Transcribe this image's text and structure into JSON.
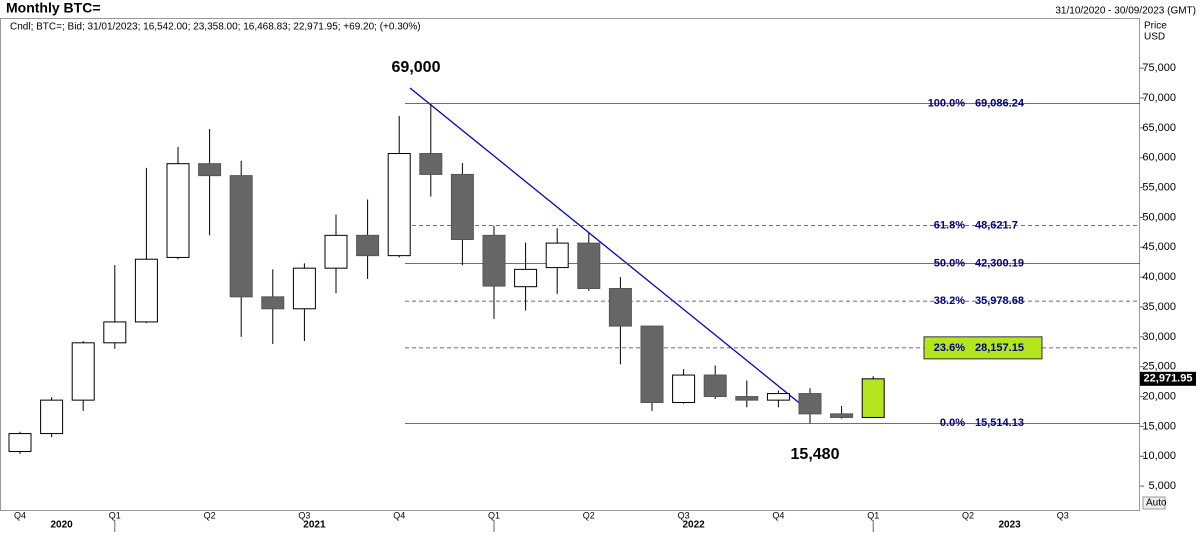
{
  "chart_data": {
    "type": "candlestick",
    "title": "Monthly BTC=",
    "subtitle": "Cndl; BTC=; Bid; 31/01/2023; 16,542.00; 23,358.00; 16,468.83; 22,971.95; +69.20; (+0.30%)",
    "date_range": "31/10/2020 - 30/09/2023 (GMT)",
    "y_axis_title": "Price",
    "y_axis_unit": "USD",
    "scale_mode": "Auto",
    "categories": [
      "Q4",
      null,
      null,
      "Q1",
      null,
      null,
      "Q2",
      null,
      null,
      "Q3",
      null,
      null,
      "Q4",
      null,
      null,
      "Q1",
      null,
      null,
      "Q2",
      null,
      null,
      "Q3",
      null,
      null,
      "Q4",
      null,
      null,
      "Q1",
      null,
      null,
      "Q2",
      null,
      null,
      "Q3",
      null,
      null
    ],
    "years": [
      null,
      "2020",
      null,
      null,
      null,
      null,
      null,
      null,
      null,
      "2021",
      null,
      null,
      null,
      null,
      null,
      null,
      null,
      null,
      null,
      null,
      null,
      "2022",
      null,
      null,
      null,
      null,
      null,
      null,
      null,
      null,
      null,
      "2023",
      null,
      null,
      null,
      null
    ],
    "open": [
      10800,
      13800,
      19400,
      29000,
      32500,
      43300,
      59000,
      57000,
      36700,
      34700,
      41500,
      47000,
      43600,
      60700,
      57200,
      47000,
      38400,
      41600,
      45700,
      38100,
      31800,
      19000,
      23600,
      20000,
      19400,
      20500,
      17100,
      16500,
      null,
      null,
      null,
      null,
      null,
      null,
      null,
      null
    ],
    "high": [
      14100,
      19900,
      29300,
      42000,
      58300,
      61800,
      64800,
      59500,
      41300,
      42300,
      50500,
      53000,
      67000,
      69000,
      59100,
      48600,
      45800,
      48200,
      47400,
      40000,
      31900,
      24600,
      25200,
      22700,
      21000,
      21400,
      18400,
      23400,
      null,
      null,
      null,
      null,
      null,
      null,
      null,
      null
    ],
    "low": [
      10400,
      13200,
      17600,
      28000,
      32300,
      43000,
      47000,
      30000,
      28800,
      29300,
      37300,
      39700,
      43300,
      53500,
      42000,
      33000,
      34400,
      37200,
      37700,
      25400,
      17600,
      18800,
      19600,
      18200,
      18200,
      15500,
      16300,
      16500,
      null,
      null,
      null,
      null,
      null,
      null,
      null,
      null
    ],
    "close": [
      13800,
      19400,
      29000,
      32500,
      43000,
      59000,
      57000,
      36700,
      34700,
      41500,
      47000,
      43600,
      60700,
      57200,
      46300,
      38500,
      41300,
      45700,
      38100,
      31800,
      19000,
      23600,
      20000,
      19400,
      20500,
      17100,
      16500,
      22971.95,
      null,
      null,
      null,
      null,
      null,
      null,
      null,
      null
    ],
    "up_color": "#ffffff",
    "down_color": "#666666",
    "highlight_color": "#b5e61d",
    "last_price": {
      "value": 22971.95,
      "label": "22,971.95"
    },
    "ylim": [
      1000,
      83400
    ],
    "yticks": [
      {
        "value": 5000,
        "label": "5,000"
      },
      {
        "value": 10000,
        "label": "10,000"
      },
      {
        "value": 15000,
        "label": "15,000"
      },
      {
        "value": 20000,
        "label": "20,000"
      },
      {
        "value": 25000,
        "label": "25,000"
      },
      {
        "value": 30000,
        "label": "30,000"
      },
      {
        "value": 35000,
        "label": "35,000"
      },
      {
        "value": 40000,
        "label": "40,000"
      },
      {
        "value": 45000,
        "label": "45,000"
      },
      {
        "value": 50000,
        "label": "50,000"
      },
      {
        "value": 55000,
        "label": "55,000"
      },
      {
        "value": 60000,
        "label": "60,000"
      },
      {
        "value": 65000,
        "label": "65,000"
      },
      {
        "value": 70000,
        "label": "70,000"
      },
      {
        "value": 75000,
        "label": "75,000"
      }
    ],
    "fib_levels": [
      {
        "ratio": "100.0%",
        "value": 69086.24,
        "label": "69,086.24",
        "dashed": false
      },
      {
        "ratio": "61.8%",
        "value": 48621.7,
        "label": "48,621.7",
        "dashed": true
      },
      {
        "ratio": "50.0%",
        "value": 42300.19,
        "label": "42,300.19",
        "dashed": false
      },
      {
        "ratio": "38.2%",
        "value": 35978.68,
        "label": "35,978.68",
        "dashed": true
      },
      {
        "ratio": "23.6%",
        "value": 28157.15,
        "label": "28,157.15",
        "dashed": true,
        "highlight": true
      },
      {
        "ratio": "0.0%",
        "value": 15514.13,
        "label": "15,514.13",
        "dashed": false
      }
    ],
    "annotations": [
      "69,000",
      "15,480"
    ]
  }
}
